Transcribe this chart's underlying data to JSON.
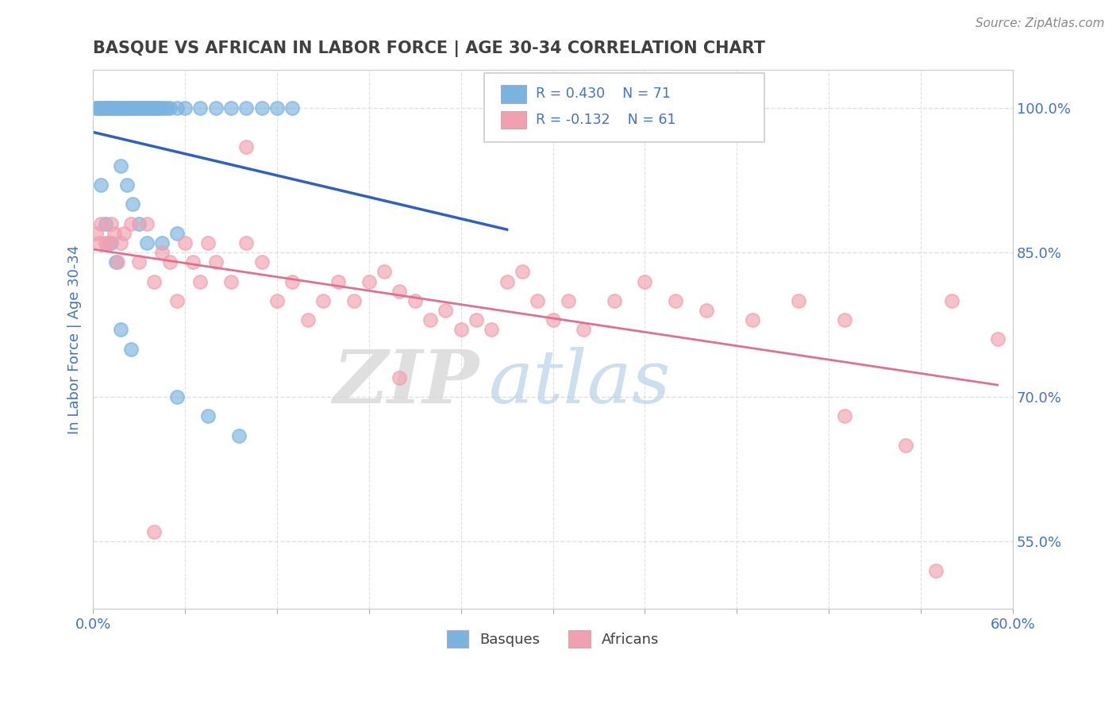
{
  "title": "BASQUE VS AFRICAN IN LABOR FORCE | AGE 30-34 CORRELATION CHART",
  "source_text": "Source: ZipAtlas.com",
  "ylabel": "In Labor Force | Age 30-34",
  "xlim": [
    0.0,
    0.6
  ],
  "ylim": [
    0.48,
    1.04
  ],
  "yticks_right": [
    0.55,
    0.7,
    0.85,
    1.0
  ],
  "ytick_right_labels": [
    "55.0%",
    "70.0%",
    "85.0%",
    "100.0%"
  ],
  "R_basque": 0.43,
  "N_basque": 71,
  "R_african": -0.132,
  "N_african": 61,
  "basque_color": "#7ab3e0",
  "african_color": "#f0a0b0",
  "basque_line_color": "#3060c0",
  "african_line_color": "#e07090",
  "watermark_zip": "ZIP",
  "watermark_atlas": "atlas",
  "title_color": "#404040",
  "axis_label_color": "#4472c4",
  "grid_color": "#e0e0e0",
  "basque_x": [
    0.002,
    0.003,
    0.004,
    0.005,
    0.006,
    0.007,
    0.008,
    0.009,
    0.01,
    0.011,
    0.012,
    0.013,
    0.014,
    0.015,
    0.016,
    0.017,
    0.018,
    0.019,
    0.02,
    0.021,
    0.022,
    0.023,
    0.024,
    0.025,
    0.026,
    0.027,
    0.028,
    0.029,
    0.03,
    0.031,
    0.032,
    0.033,
    0.034,
    0.035,
    0.036,
    0.037,
    0.038,
    0.039,
    0.04,
    0.041,
    0.042,
    0.043,
    0.044,
    0.046,
    0.048,
    0.05,
    0.055,
    0.06,
    0.07,
    0.08,
    0.09,
    0.1,
    0.11,
    0.12,
    0.13,
    0.018,
    0.022,
    0.026,
    0.03,
    0.005,
    0.008,
    0.012,
    0.015,
    0.035,
    0.045,
    0.055,
    0.018,
    0.025,
    0.055,
    0.075,
    0.095
  ],
  "basque_y": [
    1.0,
    1.0,
    1.0,
    1.0,
    1.0,
    1.0,
    1.0,
    1.0,
    1.0,
    1.0,
    1.0,
    1.0,
    1.0,
    1.0,
    1.0,
    1.0,
    1.0,
    1.0,
    1.0,
    1.0,
    1.0,
    1.0,
    1.0,
    1.0,
    1.0,
    1.0,
    1.0,
    1.0,
    1.0,
    1.0,
    1.0,
    1.0,
    1.0,
    1.0,
    1.0,
    1.0,
    1.0,
    1.0,
    1.0,
    1.0,
    1.0,
    1.0,
    1.0,
    1.0,
    1.0,
    1.0,
    1.0,
    1.0,
    1.0,
    1.0,
    1.0,
    1.0,
    1.0,
    1.0,
    1.0,
    0.94,
    0.92,
    0.9,
    0.88,
    0.92,
    0.88,
    0.86,
    0.84,
    0.86,
    0.86,
    0.87,
    0.77,
    0.75,
    0.7,
    0.68,
    0.66
  ],
  "african_x": [
    0.002,
    0.004,
    0.005,
    0.008,
    0.01,
    0.012,
    0.014,
    0.016,
    0.018,
    0.02,
    0.025,
    0.03,
    0.035,
    0.04,
    0.045,
    0.05,
    0.055,
    0.06,
    0.065,
    0.07,
    0.075,
    0.08,
    0.09,
    0.1,
    0.11,
    0.12,
    0.13,
    0.14,
    0.15,
    0.16,
    0.17,
    0.18,
    0.19,
    0.2,
    0.21,
    0.22,
    0.23,
    0.24,
    0.25,
    0.26,
    0.27,
    0.28,
    0.29,
    0.3,
    0.31,
    0.32,
    0.34,
    0.36,
    0.38,
    0.4,
    0.43,
    0.46,
    0.49,
    0.53,
    0.56,
    0.59,
    0.04,
    0.1,
    0.2,
    0.49,
    0.55
  ],
  "african_y": [
    0.87,
    0.86,
    0.88,
    0.86,
    0.86,
    0.88,
    0.87,
    0.84,
    0.86,
    0.87,
    0.88,
    0.84,
    0.88,
    0.82,
    0.85,
    0.84,
    0.8,
    0.86,
    0.84,
    0.82,
    0.86,
    0.84,
    0.82,
    0.86,
    0.84,
    0.8,
    0.82,
    0.78,
    0.8,
    0.82,
    0.8,
    0.82,
    0.83,
    0.81,
    0.8,
    0.78,
    0.79,
    0.77,
    0.78,
    0.77,
    0.82,
    0.83,
    0.8,
    0.78,
    0.8,
    0.77,
    0.8,
    0.82,
    0.8,
    0.79,
    0.78,
    0.8,
    0.78,
    0.65,
    0.8,
    0.76,
    0.56,
    0.96,
    0.72,
    0.68,
    0.52
  ]
}
